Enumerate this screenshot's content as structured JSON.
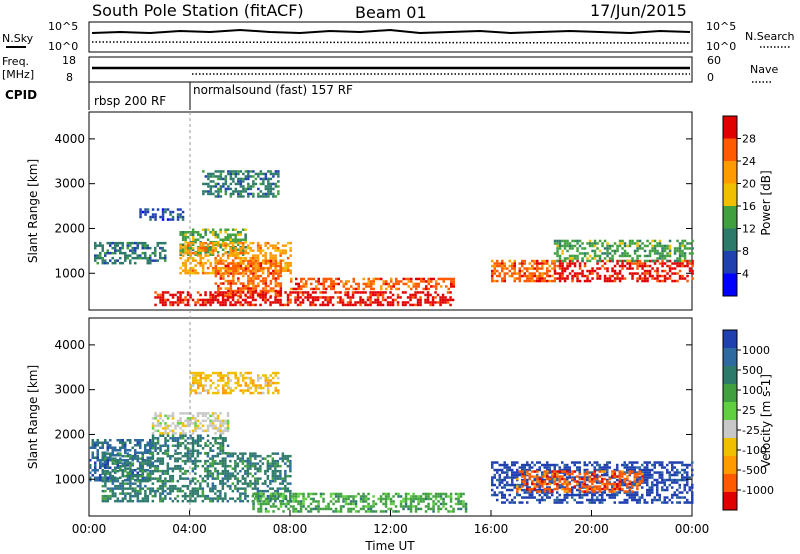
{
  "header": {
    "station": "South Pole Station (fitACF)",
    "beam": "Beam 01",
    "date": "17/Jun/2015"
  },
  "top_panels": {
    "nsky_label": "N.Sky",
    "nsky_ticks": [
      "10^5",
      "10^0"
    ],
    "nsearch_label": "N.Search",
    "nsearch_ticks": [
      "10^5",
      "10^0"
    ],
    "freq_label": "Freq.",
    "freq_unit": "[MHz]",
    "freq_ticks": [
      "18",
      "8"
    ],
    "nave_label": "Nave",
    "nave_ticks": [
      "60",
      "0"
    ],
    "cpid_label": "CPID",
    "cpid_segments": [
      {
        "label": "rbsp 200 RF",
        "start_hour": 0,
        "end_hour": 4
      },
      {
        "label": "normalsound (fast) 157 RF",
        "start_hour": 4,
        "end_hour": 24
      }
    ]
  },
  "chart_data": [
    {
      "type": "heatmap",
      "name": "power",
      "ylabel": "Slant Range [km]",
      "xlabel": "",
      "ylim": [
        180,
        4600
      ],
      "xlim": [
        0,
        24
      ],
      "yticks": [
        1000,
        2000,
        3000,
        4000
      ],
      "colorbar": {
        "label": "Power [dB]",
        "ticks": [
          "28",
          "24",
          "20",
          "16",
          "12",
          "8",
          "4"
        ],
        "colors": [
          "#e00000",
          "#ff5a00",
          "#ff9a00",
          "#f0c000",
          "#40a040",
          "#2e7a6a",
          "#2040b0",
          "#0000ff"
        ]
      },
      "blobs": [
        {
          "x0": 0.2,
          "x1": 3.0,
          "y0": 1250,
          "y1": 1700,
          "c": 5
        },
        {
          "x0": 2.0,
          "x1": 3.8,
          "y0": 2200,
          "y1": 2450,
          "c": 6
        },
        {
          "x0": 3.6,
          "x1": 6.2,
          "y0": 1400,
          "y1": 2000,
          "c": 4
        },
        {
          "x0": 4.5,
          "x1": 7.5,
          "y0": 2700,
          "y1": 3300,
          "c": 5
        },
        {
          "x0": 3.6,
          "x1": 8.0,
          "y0": 1000,
          "y1": 1700,
          "c": 2
        },
        {
          "x0": 5.0,
          "x1": 7.6,
          "y0": 500,
          "y1": 1300,
          "c": 1
        },
        {
          "x0": 2.6,
          "x1": 14.5,
          "y0": 300,
          "y1": 600,
          "c": 0
        },
        {
          "x0": 8.0,
          "x1": 14.5,
          "y0": 650,
          "y1": 900,
          "c": 1
        },
        {
          "x0": 16.0,
          "x1": 18.5,
          "y0": 800,
          "y1": 1300,
          "c": 1
        },
        {
          "x0": 18.5,
          "x1": 24.0,
          "y0": 800,
          "y1": 1300,
          "c": 0
        },
        {
          "x0": 18.5,
          "x1": 24.0,
          "y0": 1300,
          "y1": 1750,
          "c": 4
        }
      ]
    },
    {
      "type": "heatmap",
      "name": "velocity",
      "ylabel": "Slant Range [km]",
      "xlabel": "Time UT",
      "ylim": [
        180,
        4600
      ],
      "xlim": [
        0,
        24
      ],
      "yticks": [
        1000,
        2000,
        3000,
        4000
      ],
      "xticks": [
        "00:00",
        "04:00",
        "08:00",
        "12:00",
        "16:00",
        "20:00",
        "00:00"
      ],
      "colorbar": {
        "label": "Velocity [m s-1]",
        "ticks": [
          "1000",
          "500",
          "100",
          "25",
          "-25",
          "-100",
          "-500",
          "-1000"
        ],
        "colors": [
          "#2040b0",
          "#2e6aa0",
          "#2e7a6a",
          "#40a040",
          "#60d040",
          "#c8c8c8",
          "#f0c000",
          "#ff9a00",
          "#ff5a00",
          "#e00000"
        ]
      },
      "blobs": [
        {
          "x0": 0.0,
          "x1": 2.5,
          "y0": 1000,
          "y1": 1900,
          "c": 1
        },
        {
          "x0": 2.5,
          "x1": 5.5,
          "y0": 2000,
          "y1": 2500,
          "c": 5
        },
        {
          "x0": 0.5,
          "x1": 8.0,
          "y0": 500,
          "y1": 1600,
          "c": 2
        },
        {
          "x0": 2.5,
          "x1": 5.5,
          "y0": 1600,
          "y1": 2000,
          "c": 2
        },
        {
          "x0": 4.0,
          "x1": 7.5,
          "y0": 2900,
          "y1": 3400,
          "c": 6
        },
        {
          "x0": 6.5,
          "x1": 15.0,
          "y0": 300,
          "y1": 700,
          "c": 3
        },
        {
          "x0": 16.0,
          "x1": 24.0,
          "y0": 500,
          "y1": 1400,
          "c": 0
        },
        {
          "x0": 17.0,
          "x1": 22.0,
          "y0": 700,
          "y1": 1200,
          "c": 8
        }
      ]
    }
  ]
}
